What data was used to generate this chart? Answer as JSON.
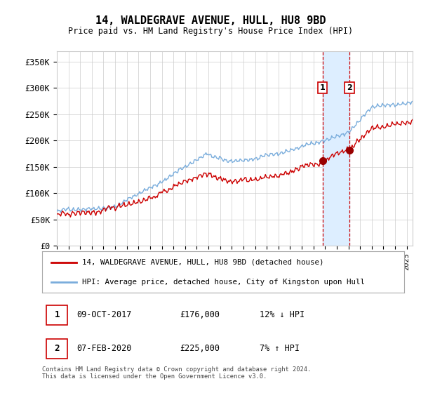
{
  "title": "14, WALDEGRAVE AVENUE, HULL, HU8 9BD",
  "subtitle": "Price paid vs. HM Land Registry's House Price Index (HPI)",
  "ylabel_ticks": [
    "£0",
    "£50K",
    "£100K",
    "£150K",
    "£200K",
    "£250K",
    "£300K",
    "£350K"
  ],
  "ytick_values": [
    0,
    50000,
    100000,
    150000,
    200000,
    250000,
    300000,
    350000
  ],
  "ylim": [
    0,
    370000
  ],
  "xlim_start": 1995.0,
  "xlim_end": 2025.5,
  "transaction1_date": 2017.77,
  "transaction1_price": 176000,
  "transaction2_date": 2020.09,
  "transaction2_price": 225000,
  "legend_line1": "14, WALDEGRAVE AVENUE, HULL, HU8 9BD (detached house)",
  "legend_line2": "HPI: Average price, detached house, City of Kingston upon Hull",
  "footer": "Contains HM Land Registry data © Crown copyright and database right 2024.\nThis data is licensed under the Open Government Licence v3.0.",
  "hpi_color": "#7aaddc",
  "price_color": "#cc0000",
  "bg_color": "#ffffff",
  "plot_bg": "#ffffff",
  "grid_color": "#cccccc",
  "vline_color": "#cc0000",
  "highlight_color": "#ddeeff",
  "marker_color": "#990000",
  "box1_label": "1",
  "box2_label": "2",
  "row1_date": "09-OCT-2017",
  "row1_price": "£176,000",
  "row1_pct": "12% ↓ HPI",
  "row2_date": "07-FEB-2020",
  "row2_price": "£225,000",
  "row2_pct": "7% ↑ HPI"
}
